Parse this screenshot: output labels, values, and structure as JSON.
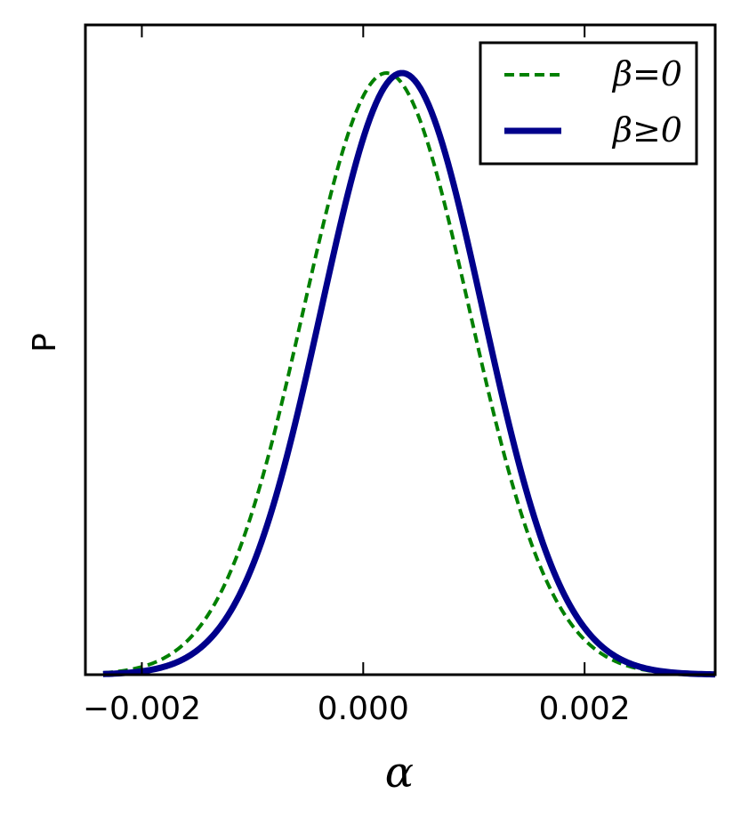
{
  "chart_data": {
    "type": "line",
    "title": "",
    "xlabel": "α",
    "ylabel": "P",
    "xlim": [
      -0.00251,
      0.00318
    ],
    "ylim": [
      0,
      1.0
    ],
    "x_ticks": [
      -0.002,
      0.0,
      0.002
    ],
    "x_tick_labels": [
      "−0.002",
      "0.000",
      "0.002"
    ],
    "y_tick_labels": [],
    "grid": false,
    "legend_position": "top-right",
    "series": [
      {
        "name": "β = 0",
        "legend_label": "β=0",
        "color": "#008000",
        "style": "dashed",
        "shape": "gaussian",
        "mean": 0.00021,
        "sigma": 0.00075,
        "peak": 1.0,
        "x_range": [
          -0.00235,
          0.00318
        ]
      },
      {
        "name": "β ≥ 0",
        "legend_label": "β≥0",
        "color": "#00008B",
        "style": "solid",
        "shape": "gaussian",
        "mean": 0.00035,
        "sigma": 0.00073,
        "peak": 1.0,
        "x_range": [
          -0.00235,
          0.00318
        ]
      }
    ]
  }
}
